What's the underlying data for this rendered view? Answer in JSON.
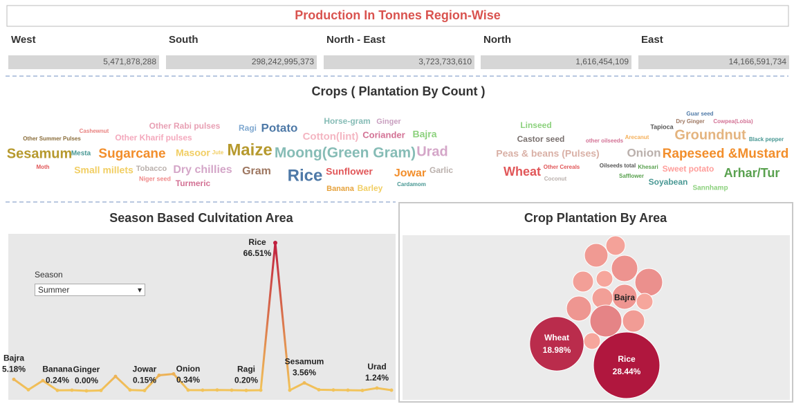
{
  "regions": {
    "title": "Production In Tonnes Region-Wise",
    "names": [
      "West",
      "South",
      "North - East",
      "North",
      "East"
    ],
    "values": [
      5471878288,
      298242995373,
      3723733610,
      1616454109,
      14166591734
    ],
    "value_labels": [
      "5,471,878,288",
      "298,242,995,373",
      "3,723,733,610",
      "1,616,454,109",
      "14,166,591,734"
    ]
  },
  "filter": {
    "label": "Season",
    "selected": "Summer"
  },
  "chart_data": [
    {
      "type": "wordcloud",
      "title": "Crops ( Plantation By Count )",
      "categories": [
        "Other Summer Pulses",
        "Cashewnut",
        "Other Kharif pulses",
        "Other Rabi pulses",
        "Ragi",
        "Potato",
        "Horse-gram",
        "Ginger",
        "Sesamum",
        "Mesta",
        "Sugarcane",
        "Masoor",
        "Jute",
        "Maize",
        "Moong(Green Gram)",
        "Urad",
        "Cotton(lint)",
        "Coriander",
        "Bajra",
        "Moth",
        "Small millets",
        "Tobacco",
        "Niger seed",
        "Dry chillies",
        "Turmeric",
        "Gram",
        "Rice",
        "Sunflower",
        "Banana",
        "Barley",
        "Jowar",
        "Garlic",
        "Cardamom",
        "Linseed",
        "Castor seed",
        "Guar seed",
        "Dry Ginger",
        "Cowpea(Lobia)",
        "Tapioca",
        "other oilseeds",
        "Arecanut",
        "Groundnut",
        "Black pepper",
        "Peas & beans (Pulses)",
        "Onion",
        "Rapeseed &Mustard",
        "Wheat",
        "Other Cereals",
        "Coconut",
        "Oilseeds total",
        "Khesari",
        "Sweet potato",
        "Arhar/Tur",
        "Safflower",
        "Soyabean",
        "Sannhamp"
      ],
      "values": [
        8,
        8,
        12,
        12,
        12,
        17,
        12,
        11,
        20,
        10,
        19,
        14,
        8,
        24,
        21,
        20,
        15,
        13,
        14,
        8,
        14,
        11,
        9,
        16,
        12,
        16,
        24,
        14,
        11,
        12,
        16,
        12,
        8,
        12,
        12,
        8,
        8,
        8,
        9,
        8,
        8,
        20,
        8,
        14,
        17,
        19,
        18,
        8,
        8,
        8,
        8,
        12,
        18,
        8,
        12,
        10
      ],
      "colors": [
        "#8a6d3b",
        "#e8817f",
        "#f4a9bd",
        "#e8a0b4",
        "#7fa8d0",
        "#4e79a7",
        "#86bcb6",
        "#c9a0c0",
        "#b6992d",
        "#499894",
        "#f28e2b",
        "#f1ce63",
        "#f1ce63",
        "#b6992d",
        "#86bcb6",
        "#d4a6c8",
        "#f4b6c2",
        "#d37295",
        "#8cd17d",
        "#e15759",
        "#f1ce63",
        "#bab0ac",
        "#f08a8a",
        "#d4a6c8",
        "#d37295",
        "#9d7660",
        "#4e79a7",
        "#e15759",
        "#e6a23c",
        "#f1ce63",
        "#f28e2b",
        "#bab0ac",
        "#499894",
        "#8cd17d",
        "#79706e",
        "#4e79a7",
        "#9d7660",
        "#d37295",
        "#555555",
        "#d37295",
        "#f5b05a",
        "#e4b47f",
        "#499894",
        "#d9b0a6",
        "#bab0ac",
        "#f28e2b",
        "#e15759",
        "#e15759",
        "#bab0ac",
        "#555555",
        "#59a14f",
        "#ff9d9a",
        "#59a14f",
        "#59a14f",
        "#499894",
        "#8cd17d"
      ]
    },
    {
      "type": "line",
      "title": "Season Based Culvitation Area",
      "categories": [
        "Bajra",
        null,
        null,
        "Banana",
        null,
        "Ginger",
        null,
        null,
        null,
        "Jowar",
        null,
        null,
        "Onion",
        null,
        null,
        null,
        "Ragi",
        null,
        "Rice",
        null,
        "Sesamum",
        null,
        null,
        null,
        null,
        "Urad",
        null
      ],
      "values": [
        5.18,
        0.5,
        4.6,
        0.24,
        0.3,
        0.0,
        0.2,
        6.5,
        0.4,
        0.15,
        7.0,
        7.6,
        0.34,
        0.3,
        0.4,
        0.3,
        0.2,
        0.3,
        66.51,
        0.3,
        3.56,
        0.5,
        0.4,
        0.3,
        0.2,
        1.24,
        0.3
      ],
      "value_labels": [
        "5.18%",
        null,
        null,
        "0.24%",
        null,
        "0.00%",
        null,
        null,
        null,
        "0.15%",
        null,
        null,
        "0.34%",
        null,
        null,
        null,
        "0.20%",
        null,
        "66.51%",
        null,
        "3.56%",
        null,
        null,
        null,
        null,
        "1.24%",
        null
      ],
      "colors": [
        "#f2c45a",
        "#c0203f"
      ]
    },
    {
      "type": "bubble",
      "title": "Crop Plantation By Area",
      "categories": [
        "Rice",
        "Wheat",
        "Bajra",
        null,
        null,
        null,
        null,
        null,
        null,
        null,
        null,
        null,
        null,
        null,
        null
      ],
      "values": [
        28.44,
        18.98,
        4.0,
        3.57,
        2.42,
        4.46,
        2.78,
        1.78,
        4.94,
        2.78,
        4.0,
        6.53,
        1.78,
        3.16,
        1.78
      ],
      "value_labels": [
        "28.44%",
        "18.98%",
        null,
        null,
        null,
        null,
        null,
        null,
        null,
        null,
        null,
        null,
        null,
        null,
        null
      ],
      "colors": [
        "#fcb3a4",
        "#b0173e"
      ]
    }
  ]
}
